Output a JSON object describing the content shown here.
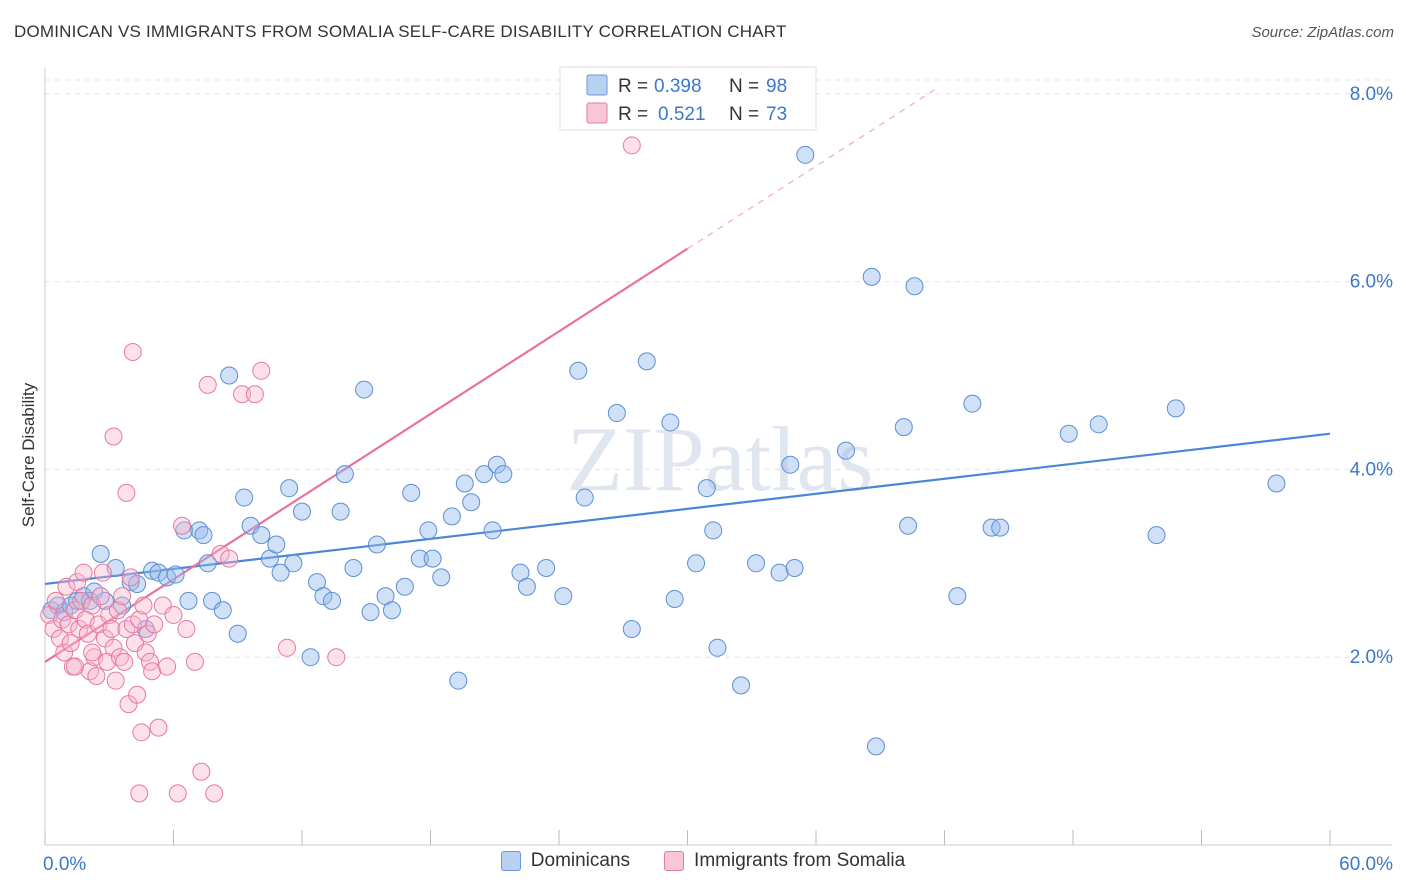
{
  "title": "DOMINICAN VS IMMIGRANTS FROM SOMALIA SELF-CARE DISABILITY CORRELATION CHART",
  "source": "Source: ZipAtlas.com",
  "watermark": "ZIPatlas",
  "legend_stats": [
    {
      "r_label": "R = ",
      "r_value": "0.398",
      "n_label": "N = ",
      "n_value": "98",
      "color": "#4a86d6"
    },
    {
      "r_label": "R = ",
      "r_value": "0.521",
      "n_label": "N = ",
      "n_value": "73",
      "color": "#e8739a"
    }
  ],
  "legend_bottom": [
    {
      "label": "Dominicans",
      "color": "#4a86d6"
    },
    {
      "label": "Immigrants from Somalia",
      "color": "#e8739a"
    }
  ],
  "chart_data": {
    "type": "scatter",
    "ylabel": "Self-Care Disability",
    "xlim": [
      0,
      60
    ],
    "ylim": [
      0,
      8.2
    ],
    "x_tick_labels": [
      {
        "value": 0,
        "label": "0.0%"
      },
      {
        "value": 60,
        "label": "60.0%"
      }
    ],
    "y_tick_labels": [
      {
        "value": 2,
        "label": "2.0%"
      },
      {
        "value": 4,
        "label": "4.0%"
      },
      {
        "value": 6,
        "label": "6.0%"
      },
      {
        "value": 8,
        "label": "8.0%"
      }
    ],
    "series": [
      {
        "name": "Dominicans",
        "color": "#4a86d6",
        "trend": {
          "x0": 0,
          "y0": 2.78,
          "x1": 60,
          "y1": 4.38
        },
        "points": [
          [
            0.3,
            2.5
          ],
          [
            0.6,
            2.55
          ],
          [
            0.9,
            2.48
          ],
          [
            1.2,
            2.55
          ],
          [
            1.5,
            2.6
          ],
          [
            1.8,
            2.65
          ],
          [
            2.1,
            2.6
          ],
          [
            2.3,
            2.7
          ],
          [
            2.6,
            3.1
          ],
          [
            2.8,
            2.6
          ],
          [
            3.3,
            2.95
          ],
          [
            3.6,
            2.55
          ],
          [
            4.0,
            2.8
          ],
          [
            4.3,
            2.78
          ],
          [
            4.7,
            2.3
          ],
          [
            5.0,
            2.92
          ],
          [
            5.3,
            2.9
          ],
          [
            5.7,
            2.85
          ],
          [
            6.1,
            2.88
          ],
          [
            6.5,
            3.35
          ],
          [
            6.7,
            2.6
          ],
          [
            7.2,
            3.35
          ],
          [
            7.4,
            3.3
          ],
          [
            7.6,
            3.0
          ],
          [
            7.8,
            2.6
          ],
          [
            8.3,
            2.5
          ],
          [
            8.6,
            5.0
          ],
          [
            9.0,
            2.25
          ],
          [
            9.3,
            3.7
          ],
          [
            9.6,
            3.4
          ],
          [
            10.1,
            3.3
          ],
          [
            10.5,
            3.05
          ],
          [
            10.8,
            3.2
          ],
          [
            11.0,
            2.9
          ],
          [
            11.4,
            3.8
          ],
          [
            11.6,
            3.0
          ],
          [
            12.0,
            3.55
          ],
          [
            12.4,
            2.0
          ],
          [
            12.7,
            2.8
          ],
          [
            13.0,
            2.65
          ],
          [
            13.4,
            2.6
          ],
          [
            13.8,
            3.55
          ],
          [
            14.0,
            3.95
          ],
          [
            14.4,
            2.95
          ],
          [
            14.9,
            4.85
          ],
          [
            15.2,
            2.48
          ],
          [
            15.5,
            3.2
          ],
          [
            15.9,
            2.65
          ],
          [
            16.2,
            2.5
          ],
          [
            16.8,
            2.75
          ],
          [
            17.1,
            3.75
          ],
          [
            17.5,
            3.05
          ],
          [
            17.9,
            3.35
          ],
          [
            18.1,
            3.05
          ],
          [
            18.5,
            2.85
          ],
          [
            19.0,
            3.5
          ],
          [
            19.3,
            1.75
          ],
          [
            19.6,
            3.85
          ],
          [
            19.9,
            3.65
          ],
          [
            20.5,
            3.95
          ],
          [
            20.9,
            3.35
          ],
          [
            21.1,
            4.05
          ],
          [
            21.4,
            3.95
          ],
          [
            22.2,
            2.9
          ],
          [
            22.5,
            2.75
          ],
          [
            23.4,
            2.95
          ],
          [
            24.2,
            2.65
          ],
          [
            24.9,
            5.05
          ],
          [
            25.2,
            3.7
          ],
          [
            26.7,
            4.6
          ],
          [
            27.4,
            2.3
          ],
          [
            28.1,
            5.15
          ],
          [
            29.2,
            4.5
          ],
          [
            29.4,
            2.62
          ],
          [
            30.4,
            3.0
          ],
          [
            30.9,
            3.8
          ],
          [
            31.2,
            3.35
          ],
          [
            31.4,
            2.1
          ],
          [
            32.5,
            1.7
          ],
          [
            33.2,
            3.0
          ],
          [
            34.3,
            2.9
          ],
          [
            34.8,
            4.05
          ],
          [
            35.0,
            2.95
          ],
          [
            37.4,
            4.2
          ],
          [
            38.6,
            6.05
          ],
          [
            38.8,
            1.05
          ],
          [
            40.1,
            4.45
          ],
          [
            40.3,
            3.4
          ],
          [
            40.6,
            5.95
          ],
          [
            42.6,
            2.65
          ],
          [
            43.3,
            4.7
          ],
          [
            44.2,
            3.38
          ],
          [
            44.6,
            3.38
          ],
          [
            47.8,
            4.38
          ],
          [
            49.2,
            4.48
          ],
          [
            51.9,
            3.3
          ],
          [
            52.8,
            4.65
          ],
          [
            57.5,
            3.85
          ],
          [
            35.5,
            7.35
          ]
        ]
      },
      {
        "name": "Immigrants from Somalia",
        "color": "#e8739a",
        "trend": {
          "x0": 0,
          "y0": 1.95,
          "x1": 30,
          "y1": 6.35
        },
        "trend_dashed_to": {
          "x": 41.6,
          "y": 8.05
        },
        "points": [
          [
            0.2,
            2.45
          ],
          [
            0.4,
            2.3
          ],
          [
            0.5,
            2.6
          ],
          [
            0.7,
            2.2
          ],
          [
            0.8,
            2.4
          ],
          [
            0.9,
            2.05
          ],
          [
            1.0,
            2.75
          ],
          [
            1.1,
            2.35
          ],
          [
            1.2,
            2.15
          ],
          [
            1.3,
            1.9
          ],
          [
            1.4,
            2.5
          ],
          [
            1.5,
            2.8
          ],
          [
            1.6,
            2.3
          ],
          [
            1.7,
            2.6
          ],
          [
            1.8,
            2.9
          ],
          [
            1.9,
            2.4
          ],
          [
            2.0,
            2.25
          ],
          [
            2.1,
            1.85
          ],
          [
            2.2,
            2.55
          ],
          [
            2.3,
            2.0
          ],
          [
            2.4,
            1.8
          ],
          [
            2.5,
            2.35
          ],
          [
            2.6,
            2.65
          ],
          [
            2.7,
            2.9
          ],
          [
            2.8,
            2.2
          ],
          [
            2.9,
            1.95
          ],
          [
            3.0,
            2.45
          ],
          [
            3.1,
            2.3
          ],
          [
            3.2,
            2.1
          ],
          [
            3.3,
            1.75
          ],
          [
            3.4,
            2.5
          ],
          [
            3.5,
            2.0
          ],
          [
            3.6,
            2.65
          ],
          [
            3.7,
            1.95
          ],
          [
            3.8,
            2.3
          ],
          [
            3.9,
            1.5
          ],
          [
            4.0,
            2.85
          ],
          [
            4.1,
            2.35
          ],
          [
            4.2,
            2.15
          ],
          [
            4.3,
            1.6
          ],
          [
            4.4,
            2.4
          ],
          [
            4.5,
            1.2
          ],
          [
            4.6,
            2.55
          ],
          [
            4.7,
            2.05
          ],
          [
            4.8,
            2.25
          ],
          [
            4.9,
            1.95
          ],
          [
            5.0,
            1.85
          ],
          [
            5.1,
            2.35
          ],
          [
            5.3,
            1.25
          ],
          [
            5.5,
            2.55
          ],
          [
            5.7,
            1.9
          ],
          [
            6.0,
            2.45
          ],
          [
            6.2,
            0.55
          ],
          [
            6.4,
            3.4
          ],
          [
            6.6,
            2.3
          ],
          [
            7.0,
            1.95
          ],
          [
            7.3,
            0.78
          ],
          [
            7.6,
            4.9
          ],
          [
            7.9,
            0.55
          ],
          [
            8.2,
            3.1
          ],
          [
            9.2,
            4.8
          ],
          [
            9.8,
            4.8
          ],
          [
            10.1,
            5.05
          ],
          [
            11.3,
            2.1
          ],
          [
            13.6,
            2.0
          ],
          [
            3.2,
            4.35
          ],
          [
            3.8,
            3.75
          ],
          [
            4.1,
            5.25
          ],
          [
            1.4,
            1.9
          ],
          [
            2.2,
            2.05
          ],
          [
            4.4,
            0.55
          ],
          [
            8.6,
            3.05
          ],
          [
            27.4,
            7.45
          ]
        ]
      }
    ]
  }
}
